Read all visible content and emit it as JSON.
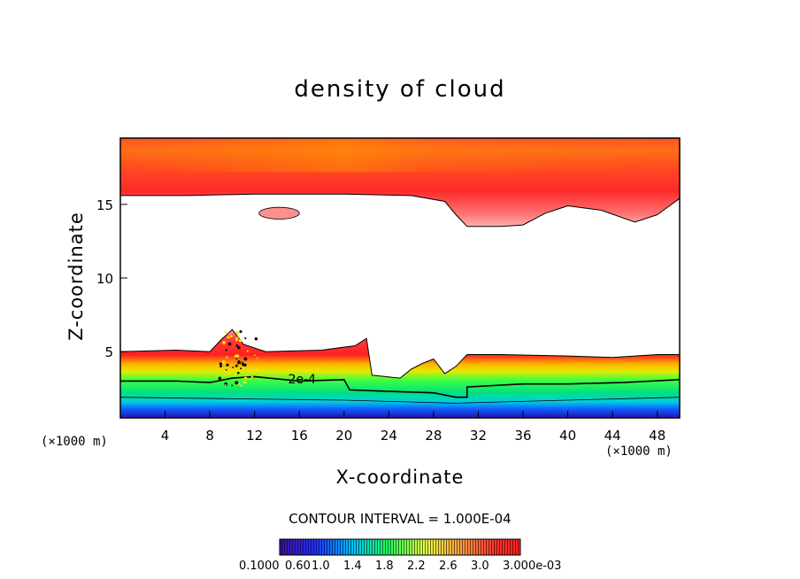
{
  "chart_data": {
    "type": "heatmap",
    "title": "density of cloud",
    "xlabel": "X-coordinate",
    "ylabel": "Z-coordinate",
    "x_unit_left": "(×1000 m)",
    "x_unit_right": "(×1000 m)",
    "xlim": [
      0,
      50
    ],
    "ylim": [
      0.5,
      19.5
    ],
    "xticks": [
      4,
      8,
      12,
      16,
      20,
      24,
      28,
      32,
      36,
      40,
      44,
      48
    ],
    "yticks": [
      5,
      10,
      15
    ],
    "contour_label": "2e-4",
    "contour_interval": "CONTOUR INTERVAL = 1.000E-04",
    "colorbar_labels": [
      "0.1000",
      "0.60",
      "1.0",
      "1.4",
      "1.8",
      "2.2",
      "2.6",
      "3.0",
      "3.000e-03"
    ],
    "upper_cloud_bottom_z": [
      [
        0,
        15.6
      ],
      [
        6,
        15.6
      ],
      [
        12,
        15.7
      ],
      [
        20,
        15.7
      ],
      [
        26,
        15.6
      ],
      [
        29,
        15.2
      ],
      [
        30,
        14.3
      ],
      [
        31,
        13.5
      ],
      [
        34,
        13.5
      ],
      [
        36,
        13.6
      ],
      [
        38,
        14.4
      ],
      [
        40,
        14.9
      ],
      [
        43,
        14.6
      ],
      [
        46,
        13.8
      ],
      [
        48,
        14.3
      ],
      [
        50,
        15.4
      ]
    ],
    "isolated_patch": {
      "x": 14.2,
      "z": 14.4,
      "x_halfwidth": 1.8,
      "z_halfwidth": 0.4
    },
    "lower_cloud_top_z": [
      [
        0,
        5.0
      ],
      [
        5,
        5.1
      ],
      [
        8,
        5.0
      ],
      [
        9,
        5.8
      ],
      [
        10,
        6.5
      ],
      [
        11,
        5.5
      ],
      [
        13,
        5.0
      ],
      [
        18,
        5.1
      ],
      [
        21,
        5.4
      ],
      [
        22,
        5.9
      ],
      [
        22.5,
        3.4
      ],
      [
        25,
        3.2
      ],
      [
        26,
        3.8
      ],
      [
        27,
        4.2
      ],
      [
        28,
        4.5
      ],
      [
        29,
        3.5
      ],
      [
        30,
        4.0
      ],
      [
        31,
        4.8
      ],
      [
        34,
        4.8
      ],
      [
        40,
        4.7
      ],
      [
        44,
        4.6
      ],
      [
        48,
        4.8
      ],
      [
        50,
        4.8
      ]
    ],
    "contour_2e4_z": [
      [
        0,
        3.0
      ],
      [
        5,
        3.0
      ],
      [
        8,
        2.9
      ],
      [
        10,
        3.2
      ],
      [
        12,
        3.3
      ],
      [
        16,
        3.0
      ],
      [
        20,
        3.1
      ],
      [
        20.5,
        2.4
      ],
      [
        24,
        2.3
      ],
      [
        28,
        2.2
      ],
      [
        30,
        1.9
      ],
      [
        31,
        1.9
      ],
      [
        31,
        2.6
      ],
      [
        36,
        2.8
      ],
      [
        40,
        2.8
      ],
      [
        45,
        2.9
      ],
      [
        50,
        3.1
      ]
    ],
    "lower_cloud_bottom_z": [
      [
        0,
        1.0
      ],
      [
        10,
        0.9
      ],
      [
        20,
        0.8
      ],
      [
        30,
        0.6
      ],
      [
        40,
        0.8
      ],
      [
        50,
        1.0
      ]
    ]
  }
}
